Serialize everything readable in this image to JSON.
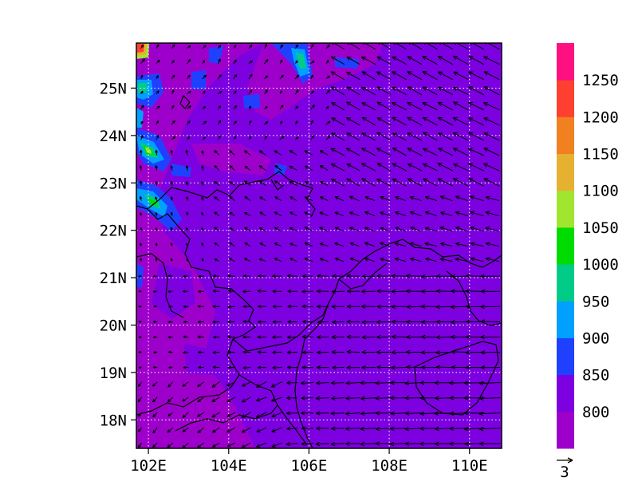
{
  "map": {
    "lon_range": [
      101.7,
      110.8
    ],
    "lat_range": [
      17.4,
      25.95
    ],
    "x_ticks": [
      {
        "value": 102,
        "label": "102E"
      },
      {
        "value": 104,
        "label": "104E"
      },
      {
        "value": 106,
        "label": "106E"
      },
      {
        "value": 108,
        "label": "108E"
      },
      {
        "value": 110,
        "label": "110E"
      }
    ],
    "y_ticks": [
      {
        "value": 25,
        "label": "25N"
      },
      {
        "value": 24,
        "label": "24N"
      },
      {
        "value": 23,
        "label": "23N"
      },
      {
        "value": 22,
        "label": "22N"
      },
      {
        "value": 21,
        "label": "21N"
      },
      {
        "value": 20,
        "label": "20N"
      },
      {
        "value": 19,
        "label": "19N"
      },
      {
        "value": 18,
        "label": "18N"
      }
    ],
    "grid": "dotted",
    "background_color": "#7c00e0"
  },
  "colorbar": {
    "colors": [
      "#9e00cc",
      "#7c00e0",
      "#2040ff",
      "#00a0ff",
      "#00cc88",
      "#00dc00",
      "#a0e630",
      "#e6b030",
      "#f08020",
      "#ff4030",
      "#ff1080"
    ],
    "labels": [
      "800",
      "850",
      "900",
      "950",
      "1000",
      "1050",
      "1100",
      "1150",
      "1200",
      "1250"
    ]
  },
  "reference_vector": {
    "label": "3"
  }
}
